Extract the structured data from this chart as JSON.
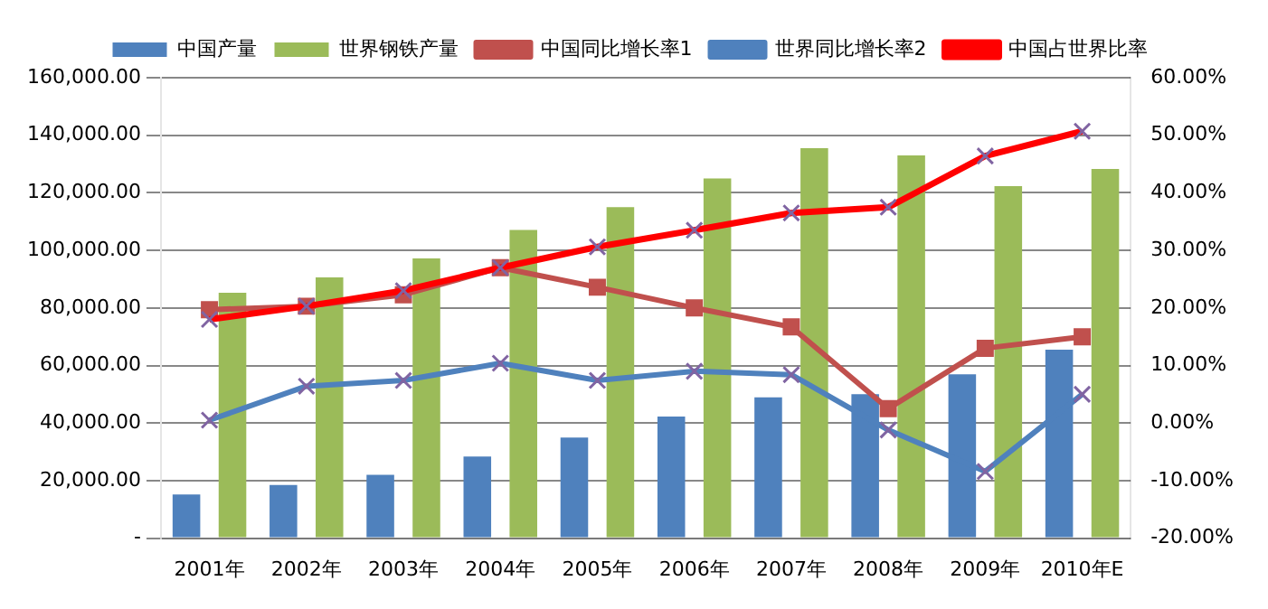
{
  "chart_data": {
    "type": "bar",
    "categories": [
      "2001年",
      "2002年",
      "2003年",
      "2004年",
      "2005年",
      "2006年",
      "2007年",
      "2008年",
      "2009年",
      "2010年E"
    ],
    "series": [
      {
        "name": "中国产量",
        "color": "#4f81bd",
        "values": [
          15200,
          18500,
          22000,
          28400,
          35000,
          42300,
          48900,
          50000,
          56900,
          65500
        ]
      },
      {
        "name": "世界钢铁产量",
        "color": "#9bbb59",
        "values": [
          85300,
          90600,
          97200,
          107100,
          115000,
          125000,
          135500,
          133000,
          122300,
          128300
        ]
      },
      {
        "name": "中国同比增长率1",
        "type": "line",
        "axis": "y2",
        "marker": "square",
        "color": "#c0504d",
        "values": [
          19.7,
          20.3,
          22.3,
          27,
          23.6,
          20,
          16.7,
          2.5,
          13,
          15
        ]
      },
      {
        "name": "世界同比增长率2",
        "type": "line",
        "axis": "y2",
        "marker": "cross",
        "color": "#4f81bd",
        "values": [
          0.5,
          6.4,
          7.4,
          10.4,
          7.4,
          9,
          8.4,
          -1.2,
          -8.4,
          5
        ]
      },
      {
        "name": "中国占世界比率",
        "type": "line",
        "axis": "y2",
        "marker": "cross",
        "color": "#ff0000",
        "values": [
          18,
          20.3,
          23,
          27,
          30.6,
          33.5,
          36.5,
          37.5,
          46.4,
          50.7
        ]
      }
    ],
    "ylim": [
      0,
      160000
    ],
    "yticks": [
      {
        "value": 0,
        "label": "-"
      },
      {
        "value": 20000,
        "label": "20,000.00"
      },
      {
        "value": 40000,
        "label": "40,000.00"
      },
      {
        "value": 60000,
        "label": "60,000.00"
      },
      {
        "value": 80000,
        "label": "80,000.00"
      },
      {
        "value": 100000,
        "label": "100,000.00"
      },
      {
        "value": 120000,
        "label": "120,000.00"
      },
      {
        "value": 140000,
        "label": "140,000.00"
      },
      {
        "value": 160000,
        "label": "160,000.00"
      }
    ],
    "y2lim": [
      -20,
      60
    ],
    "y2ticks": [
      {
        "value": -20,
        "label": "-20.00%"
      },
      {
        "value": -10,
        "label": "-10.00%"
      },
      {
        "value": 0,
        "label": "0.00%"
      },
      {
        "value": 10,
        "label": "10.00%"
      },
      {
        "value": 20,
        "label": "20.00%"
      },
      {
        "value": 30,
        "label": "30.00%"
      },
      {
        "value": 40,
        "label": "40.00%"
      },
      {
        "value": 50,
        "label": "50.00%"
      },
      {
        "value": 60,
        "label": "60.00%"
      }
    ],
    "grid": "y",
    "legend": "top"
  }
}
